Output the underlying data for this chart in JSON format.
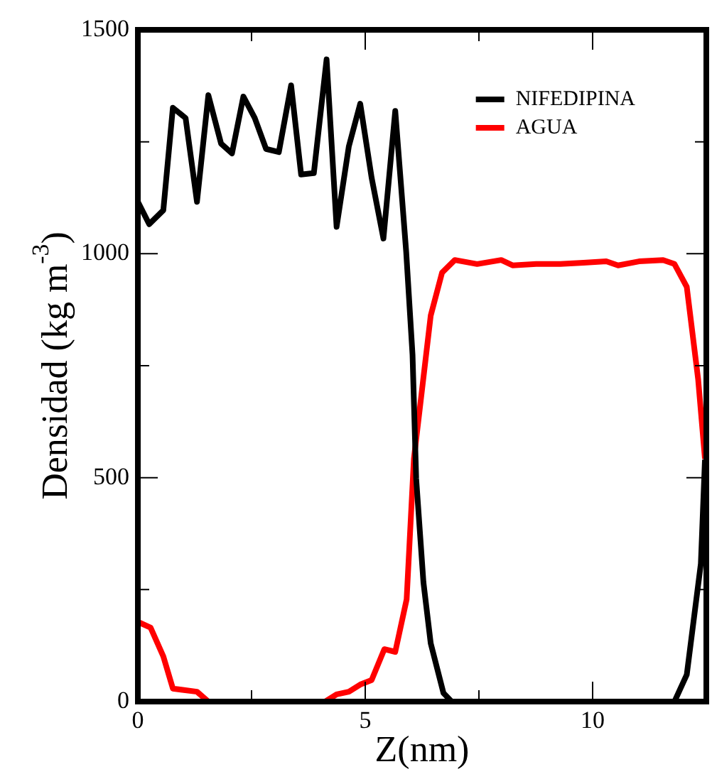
{
  "chart_data": {
    "type": "line",
    "xlabel": "Z(nm)",
    "ylabel": "Densidad (kg m$^{-3}$)",
    "xlim": [
      0,
      12.5
    ],
    "ylim": [
      0,
      1500
    ],
    "xticks": [
      0,
      {
        "value": 2.5,
        "label": null
      },
      5,
      {
        "value": 7.5,
        "label": null
      },
      10,
      {
        "value": 12.5,
        "label": null
      }
    ],
    "yticks": [
      0,
      {
        "value": 250,
        "label": null
      },
      500,
      {
        "value": 750,
        "label": null
      },
      1000,
      {
        "value": 1250,
        "label": null
      },
      1500
    ],
    "grid": false,
    "legend": "top right",
    "marker": "none",
    "line_style": "solid",
    "series": [
      {
        "name": "NIFEDIPINA",
        "color": "#000000",
        "x": [
          0,
          0.25,
          0.56,
          0.77,
          1.05,
          1.3,
          1.55,
          1.83,
          2.07,
          2.32,
          2.57,
          2.82,
          3.1,
          3.37,
          3.59,
          3.87,
          4.15,
          4.37,
          4.64,
          4.89,
          5.14,
          5.4,
          5.66,
          5.9,
          6.04,
          6.12,
          6.28,
          6.44,
          6.72,
          6.9,
          11.8,
          12.07,
          12.38,
          12.47
        ],
        "values": [
          1116,
          1066,
          1097,
          1326,
          1303,
          1116,
          1354,
          1246,
          1224,
          1351,
          1303,
          1234,
          1227,
          1376,
          1177,
          1180,
          1434,
          1060,
          1240,
          1335,
          1170,
          1034,
          1319,
          1005,
          774,
          498,
          266,
          130,
          19,
          0,
          0,
          60,
          308,
          540
        ]
      },
      {
        "name": "AGUA",
        "color": "#ff0000",
        "x": [
          0,
          0.28,
          0.56,
          0.77,
          1.3,
          1.55,
          4.12,
          4.37,
          4.64,
          4.89,
          5.14,
          5.42,
          5.66,
          5.91,
          6.07,
          6.44,
          6.69,
          6.97,
          7.46,
          7.99,
          8.24,
          8.76,
          9.29,
          9.8,
          10.3,
          10.56,
          11.02,
          11.55,
          11.8,
          12.07,
          12.32,
          12.47
        ],
        "values": [
          178,
          165,
          101,
          29,
          22,
          0,
          0,
          16,
          22,
          38,
          48,
          117,
          111,
          228,
          542,
          862,
          958,
          986,
          977,
          986,
          974,
          977,
          977,
          980,
          983,
          974,
          983,
          986,
          977,
          926,
          720,
          542
        ]
      }
    ]
  }
}
